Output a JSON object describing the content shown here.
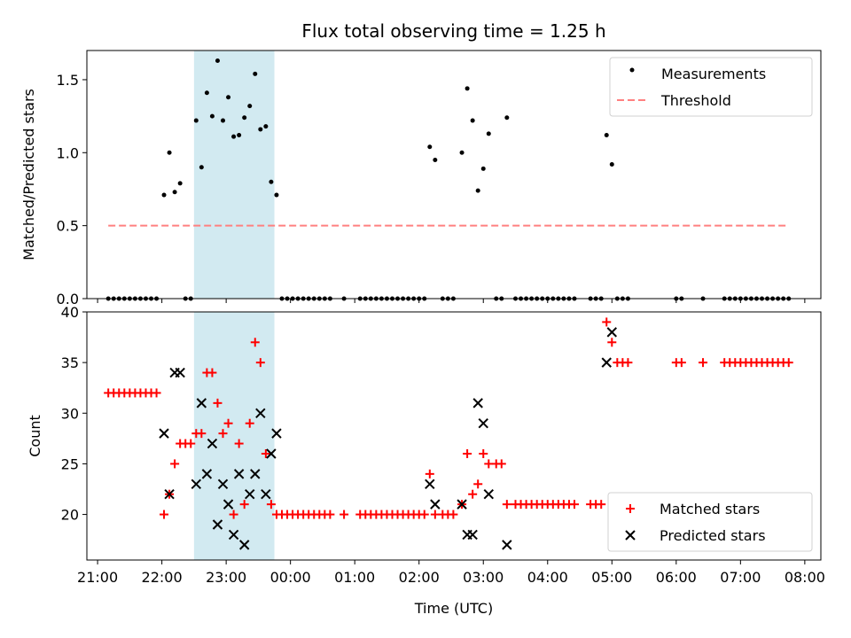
{
  "chart_data": [
    {
      "type": "scatter",
      "title": "Flux total observing time = 1.25 h",
      "xlabel": "",
      "ylabel": "Matched/Predicted stars",
      "xlim": [
        "21:00",
        "08:00"
      ],
      "ylim": [
        0,
        1.7
      ],
      "yticks": [
        0.0,
        0.5,
        1.0,
        1.5
      ],
      "ytick_labels": [
        "0.0",
        "0.5",
        "1.0",
        "1.5"
      ],
      "shaded_span": {
        "from": "22:30",
        "to": "23:45",
        "color": "#add8e6"
      },
      "legend": {
        "placement": "upper right"
      },
      "series": [
        {
          "name": "Measurements",
          "marker": "dot",
          "color": "#000000",
          "points": [
            [
              "21:10",
              0
            ],
            [
              "21:15",
              0
            ],
            [
              "21:20",
              0
            ],
            [
              "21:25",
              0
            ],
            [
              "21:30",
              0
            ],
            [
              "21:35",
              0
            ],
            [
              "21:40",
              0
            ],
            [
              "21:45",
              0
            ],
            [
              "21:50",
              0
            ],
            [
              "21:55",
              0
            ],
            [
              "22:02",
              0.71
            ],
            [
              "22:07",
              1.0
            ],
            [
              "22:12",
              0.73
            ],
            [
              "22:17",
              0.79
            ],
            [
              "22:22",
              0
            ],
            [
              "22:27",
              0
            ],
            [
              "22:32",
              1.22
            ],
            [
              "22:37",
              0.9
            ],
            [
              "22:42",
              1.41
            ],
            [
              "22:47",
              1.25
            ],
            [
              "22:52",
              1.63
            ],
            [
              "22:57",
              1.22
            ],
            [
              "23:02",
              1.38
            ],
            [
              "23:07",
              1.11
            ],
            [
              "23:12",
              1.12
            ],
            [
              "23:17",
              1.24
            ],
            [
              "23:22",
              1.32
            ],
            [
              "23:27",
              1.54
            ],
            [
              "23:32",
              1.16
            ],
            [
              "23:37",
              1.18
            ],
            [
              "23:42",
              0.8
            ],
            [
              "23:47",
              0.71
            ],
            [
              "23:52",
              0
            ],
            [
              "23:57",
              0
            ],
            [
              "00:02",
              0
            ],
            [
              "00:07",
              0
            ],
            [
              "00:12",
              0
            ],
            [
              "00:17",
              0
            ],
            [
              "00:22",
              0
            ],
            [
              "00:27",
              0
            ],
            [
              "00:32",
              0
            ],
            [
              "00:37",
              0
            ],
            [
              "00:50",
              0
            ],
            [
              "01:05",
              0
            ],
            [
              "01:10",
              0
            ],
            [
              "01:15",
              0
            ],
            [
              "01:20",
              0
            ],
            [
              "01:25",
              0
            ],
            [
              "01:30",
              0
            ],
            [
              "01:35",
              0
            ],
            [
              "01:40",
              0
            ],
            [
              "01:45",
              0
            ],
            [
              "01:50",
              0
            ],
            [
              "01:55",
              0
            ],
            [
              "02:00",
              0
            ],
            [
              "02:05",
              0
            ],
            [
              "02:10",
              1.04
            ],
            [
              "02:15",
              0.95
            ],
            [
              "02:22",
              0
            ],
            [
              "02:27",
              0
            ],
            [
              "02:32",
              0
            ],
            [
              "02:40",
              1.0
            ],
            [
              "02:45",
              1.44
            ],
            [
              "02:50",
              1.22
            ],
            [
              "02:55",
              0.74
            ],
            [
              "03:00",
              0.89
            ],
            [
              "03:05",
              1.13
            ],
            [
              "03:12",
              0
            ],
            [
              "03:17",
              0
            ],
            [
              "03:22",
              1.24
            ],
            [
              "03:30",
              0
            ],
            [
              "03:35",
              0
            ],
            [
              "03:40",
              0
            ],
            [
              "03:45",
              0
            ],
            [
              "03:50",
              0
            ],
            [
              "03:55",
              0
            ],
            [
              "04:00",
              0
            ],
            [
              "04:05",
              0
            ],
            [
              "04:10",
              0
            ],
            [
              "04:15",
              0
            ],
            [
              "04:20",
              0
            ],
            [
              "04:25",
              0
            ],
            [
              "04:40",
              0
            ],
            [
              "04:45",
              0
            ],
            [
              "04:50",
              0
            ],
            [
              "04:55",
              1.12
            ],
            [
              "05:00",
              0.92
            ],
            [
              "05:05",
              0
            ],
            [
              "05:10",
              0
            ],
            [
              "05:15",
              0
            ],
            [
              "06:00",
              0
            ],
            [
              "06:05",
              0
            ],
            [
              "06:25",
              0
            ],
            [
              "06:45",
              0
            ],
            [
              "06:50",
              0
            ],
            [
              "06:55",
              0
            ],
            [
              "07:00",
              0
            ],
            [
              "07:05",
              0
            ],
            [
              "07:10",
              0
            ],
            [
              "07:15",
              0
            ],
            [
              "07:20",
              0
            ],
            [
              "07:25",
              0
            ],
            [
              "07:30",
              0
            ],
            [
              "07:35",
              0
            ],
            [
              "07:40",
              0
            ],
            [
              "07:45",
              0
            ]
          ]
        },
        {
          "name": "Threshold",
          "marker": "dashed-line",
          "color": "#ff8080",
          "points": [
            [
              "21:10",
              0.5
            ],
            [
              "07:45",
              0.5
            ]
          ]
        }
      ]
    },
    {
      "type": "scatter",
      "title": "",
      "xlabel": "Time (UTC)",
      "ylabel": "Count",
      "xlim": [
        "21:00",
        "08:00"
      ],
      "ylim": [
        15.5,
        40
      ],
      "yticks": [
        20,
        25,
        30,
        35,
        40
      ],
      "ytick_labels": [
        "20",
        "25",
        "30",
        "35",
        "40"
      ],
      "xticks": [
        "21:00",
        "22:00",
        "23:00",
        "00:00",
        "01:00",
        "02:00",
        "03:00",
        "04:00",
        "05:00",
        "06:00",
        "07:00",
        "08:00"
      ],
      "xtick_labels": [
        "21:00",
        "22:00",
        "23:00",
        "00:00",
        "01:00",
        "02:00",
        "03:00",
        "04:00",
        "05:00",
        "06:00",
        "07:00",
        "08:00"
      ],
      "shaded_span": {
        "from": "22:30",
        "to": "23:45",
        "color": "#add8e6"
      },
      "legend": {
        "placement": "lower right"
      },
      "series": [
        {
          "name": "Matched stars",
          "marker": "plus",
          "color": "#ff0000",
          "points": [
            [
              "21:10",
              32
            ],
            [
              "21:15",
              32
            ],
            [
              "21:20",
              32
            ],
            [
              "21:25",
              32
            ],
            [
              "21:30",
              32
            ],
            [
              "21:35",
              32
            ],
            [
              "21:40",
              32
            ],
            [
              "21:45",
              32
            ],
            [
              "21:50",
              32
            ],
            [
              "21:55",
              32
            ],
            [
              "22:02",
              20
            ],
            [
              "22:07",
              22
            ],
            [
              "22:12",
              25
            ],
            [
              "22:17",
              27
            ],
            [
              "22:22",
              27
            ],
            [
              "22:27",
              27
            ],
            [
              "22:32",
              28
            ],
            [
              "22:37",
              28
            ],
            [
              "22:42",
              34
            ],
            [
              "22:47",
              34
            ],
            [
              "22:52",
              31
            ],
            [
              "22:57",
              28
            ],
            [
              "23:02",
              29
            ],
            [
              "23:07",
              20
            ],
            [
              "23:12",
              27
            ],
            [
              "23:17",
              21
            ],
            [
              "23:22",
              29
            ],
            [
              "23:27",
              37
            ],
            [
              "23:32",
              35
            ],
            [
              "23:37",
              26
            ],
            [
              "23:42",
              21
            ],
            [
              "23:47",
              20
            ],
            [
              "23:52",
              20
            ],
            [
              "23:57",
              20
            ],
            [
              "00:02",
              20
            ],
            [
              "00:07",
              20
            ],
            [
              "00:12",
              20
            ],
            [
              "00:17",
              20
            ],
            [
              "00:22",
              20
            ],
            [
              "00:27",
              20
            ],
            [
              "00:32",
              20
            ],
            [
              "00:37",
              20
            ],
            [
              "00:50",
              20
            ],
            [
              "01:05",
              20
            ],
            [
              "01:10",
              20
            ],
            [
              "01:15",
              20
            ],
            [
              "01:20",
              20
            ],
            [
              "01:25",
              20
            ],
            [
              "01:30",
              20
            ],
            [
              "01:35",
              20
            ],
            [
              "01:40",
              20
            ],
            [
              "01:45",
              20
            ],
            [
              "01:50",
              20
            ],
            [
              "01:55",
              20
            ],
            [
              "02:00",
              20
            ],
            [
              "02:05",
              20
            ],
            [
              "02:10",
              24
            ],
            [
              "02:15",
              20
            ],
            [
              "02:22",
              20
            ],
            [
              "02:27",
              20
            ],
            [
              "02:32",
              20
            ],
            [
              "02:40",
              21
            ],
            [
              "02:45",
              26
            ],
            [
              "02:50",
              22
            ],
            [
              "02:55",
              23
            ],
            [
              "03:00",
              26
            ],
            [
              "03:05",
              25
            ],
            [
              "03:12",
              25
            ],
            [
              "03:17",
              25
            ],
            [
              "03:22",
              21
            ],
            [
              "03:30",
              21
            ],
            [
              "03:35",
              21
            ],
            [
              "03:40",
              21
            ],
            [
              "03:45",
              21
            ],
            [
              "03:50",
              21
            ],
            [
              "03:55",
              21
            ],
            [
              "04:00",
              21
            ],
            [
              "04:05",
              21
            ],
            [
              "04:10",
              21
            ],
            [
              "04:15",
              21
            ],
            [
              "04:20",
              21
            ],
            [
              "04:25",
              21
            ],
            [
              "04:40",
              21
            ],
            [
              "04:45",
              21
            ],
            [
              "04:50",
              21
            ],
            [
              "04:55",
              39
            ],
            [
              "05:00",
              37
            ],
            [
              "05:05",
              35
            ],
            [
              "05:10",
              35
            ],
            [
              "05:15",
              35
            ],
            [
              "06:00",
              35
            ],
            [
              "06:05",
              35
            ],
            [
              "06:25",
              35
            ],
            [
              "06:45",
              35
            ],
            [
              "06:50",
              35
            ],
            [
              "06:55",
              35
            ],
            [
              "07:00",
              35
            ],
            [
              "07:05",
              35
            ],
            [
              "07:10",
              35
            ],
            [
              "07:15",
              35
            ],
            [
              "07:20",
              35
            ],
            [
              "07:25",
              35
            ],
            [
              "07:30",
              35
            ],
            [
              "07:35",
              35
            ],
            [
              "07:40",
              35
            ],
            [
              "07:45",
              35
            ]
          ]
        },
        {
          "name": "Predicted stars",
          "marker": "x",
          "color": "#000000",
          "points": [
            [
              "22:02",
              28
            ],
            [
              "22:07",
              22
            ],
            [
              "22:12",
              34
            ],
            [
              "22:17",
              34
            ],
            [
              "22:32",
              23
            ],
            [
              "22:37",
              31
            ],
            [
              "22:42",
              24
            ],
            [
              "22:47",
              27
            ],
            [
              "22:52",
              19
            ],
            [
              "22:57",
              23
            ],
            [
              "23:02",
              21
            ],
            [
              "23:07",
              18
            ],
            [
              "23:12",
              24
            ],
            [
              "23:17",
              17
            ],
            [
              "23:22",
              22
            ],
            [
              "23:27",
              24
            ],
            [
              "23:32",
              30
            ],
            [
              "23:37",
              22
            ],
            [
              "23:42",
              26
            ],
            [
              "23:47",
              28
            ],
            [
              "02:10",
              23
            ],
            [
              "02:15",
              21
            ],
            [
              "02:40",
              21
            ],
            [
              "02:45",
              18
            ],
            [
              "02:50",
              18
            ],
            [
              "02:55",
              31
            ],
            [
              "03:00",
              29
            ],
            [
              "03:05",
              22
            ],
            [
              "03:22",
              17
            ],
            [
              "04:55",
              35
            ],
            [
              "05:00",
              38
            ]
          ]
        }
      ]
    }
  ]
}
